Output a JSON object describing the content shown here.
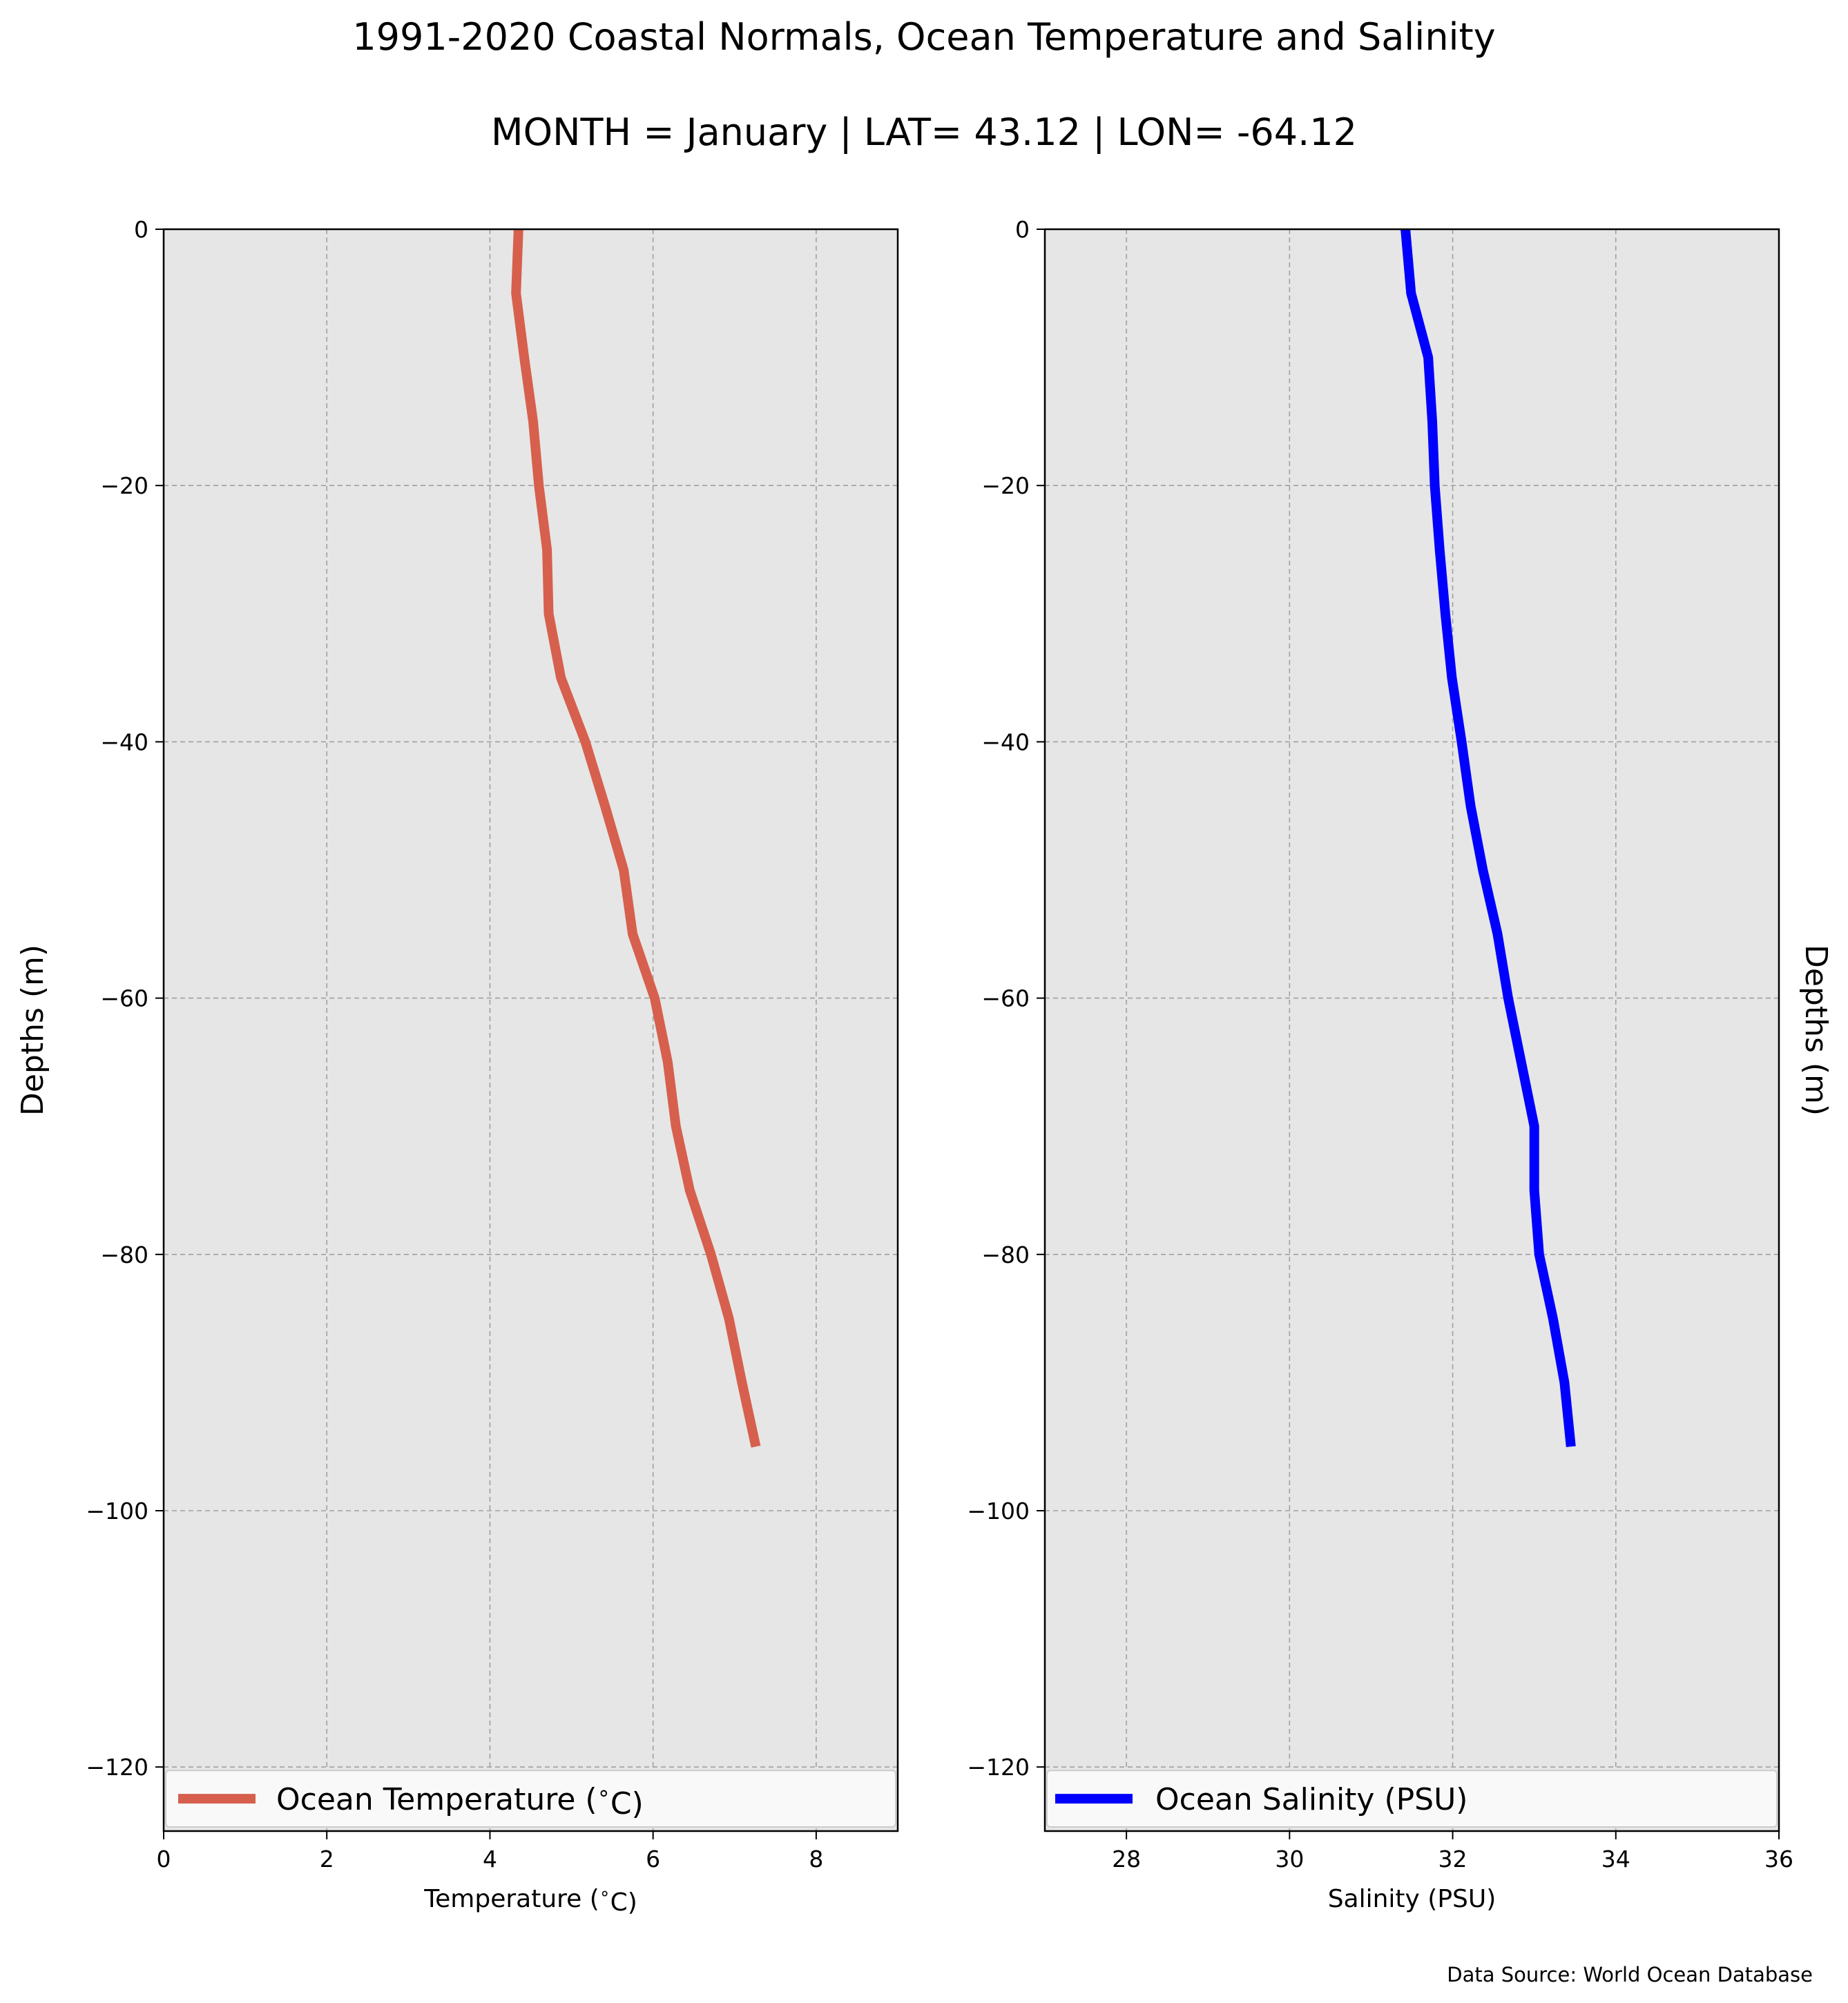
{
  "title": "1991-2020 Coastal Normals, Ocean Temperature and Salinity",
  "subtitle": "MONTH = January | LAT= 43.12 | LON= -64.12",
  "source_note": "Data Source: World Ocean Database",
  "colors": {
    "background": "#ffffff",
    "plot_bg": "#e6e6e6",
    "grid": "#a0a0a0",
    "temperature_line": "#d6604d",
    "salinity_line": "#0000ff"
  },
  "chart_data": [
    {
      "type": "line",
      "xlabel": "Temperature ($^\\circ$C)",
      "ylabel": "Depths (m)",
      "xlim": [
        0,
        9
      ],
      "ylim": [
        -125,
        0
      ],
      "xticks": [
        0,
        2,
        4,
        6,
        8
      ],
      "yticks": [
        0,
        -20,
        -40,
        -60,
        -80,
        -100,
        -120
      ],
      "grid": true,
      "legend_position": "bottom",
      "series": [
        {
          "name": "Ocean Temperature ($^\\circ$C)",
          "color": "#d6604d",
          "x": [
            4.35,
            4.32,
            4.42,
            4.53,
            4.6,
            4.7,
            4.72,
            4.87,
            5.17,
            5.41,
            5.64,
            5.75,
            6.02,
            6.18,
            6.28,
            6.45,
            6.71,
            6.93,
            7.09,
            7.26
          ],
          "y": [
            0,
            -5,
            -10,
            -15,
            -20,
            -25,
            -30,
            -35,
            -40,
            -45,
            -50,
            -55,
            -60,
            -65,
            -70,
            -75,
            -80,
            -85,
            -90,
            -95
          ]
        }
      ]
    },
    {
      "type": "line",
      "xlabel": "Salinity (PSU)",
      "ylabel": "Depths (m)",
      "xlim": [
        27,
        36
      ],
      "ylim": [
        -125,
        0
      ],
      "xticks": [
        28,
        30,
        32,
        34,
        36
      ],
      "yticks": [
        0,
        -20,
        -40,
        -60,
        -80,
        -100,
        -120
      ],
      "grid": true,
      "legend_position": "bottom",
      "series": [
        {
          "name": "Ocean Salinity (PSU)",
          "color": "#0000ff",
          "x": [
            31.42,
            31.49,
            31.7,
            31.75,
            31.78,
            31.84,
            31.91,
            31.99,
            32.11,
            32.22,
            32.37,
            32.55,
            32.68,
            32.84,
            33.0,
            33.0,
            33.06,
            33.23,
            33.37,
            33.45
          ],
          "y": [
            0,
            -5,
            -10,
            -15,
            -20,
            -25,
            -30,
            -35,
            -40,
            -45,
            -50,
            -55,
            -60,
            -65,
            -70,
            -75,
            -80,
            -85,
            -90,
            -95
          ]
        }
      ]
    }
  ]
}
